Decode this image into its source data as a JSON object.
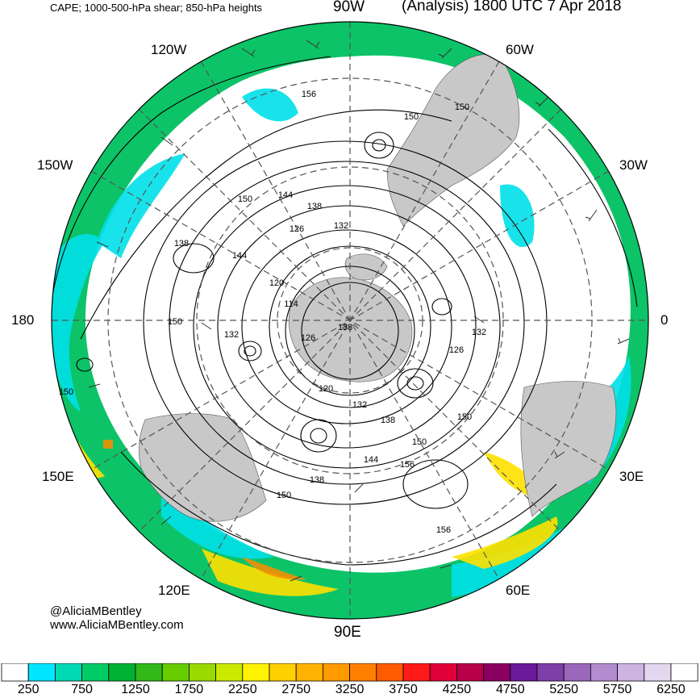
{
  "header": {
    "title_left": "CAPE; 1000-500-hPa shear; 850-hPa heights",
    "title_right": "(Analysis) 1800 UTC 7 Apr 2018"
  },
  "credit": {
    "twitter": "@AliciaMBentley",
    "website": "www.AliciaMBentley.com"
  },
  "longitude_labels": {
    "lon_90w": "90W",
    "lon_120w": "120W",
    "lon_60w": "60W",
    "lon_150w": "150W",
    "lon_30w": "30W",
    "lon_180": "180",
    "lon_0": "0",
    "lon_150e": "150E",
    "lon_30e": "30E",
    "lon_120e": "120E",
    "lon_60e": "60E",
    "lon_90e": "90E"
  },
  "contour_labels": [
    "156",
    "150",
    "150",
    "150",
    "144",
    "138",
    "138",
    "132",
    "126",
    "144",
    "120",
    "114",
    "150",
    "132",
    "138",
    "126",
    "132",
    "120",
    "126",
    "132",
    "138",
    "150",
    "144",
    "156",
    "138",
    "150",
    "156",
    "150",
    "150"
  ],
  "colorbar": {
    "ticks": [
      "250",
      "750",
      "1250",
      "1750",
      "2250",
      "2750",
      "3250",
      "3750",
      "4250",
      "4750",
      "5250",
      "5750",
      "6250"
    ],
    "colors": [
      "#ffffff",
      "#00e5ff",
      "#00d9b3",
      "#00cc66",
      "#00b233",
      "#33b81a",
      "#66cc00",
      "#99d900",
      "#ccea00",
      "#fff200",
      "#ffd000",
      "#ffb300",
      "#ff9900",
      "#ff8000",
      "#ff5a00",
      "#ff1a1a",
      "#e0003a",
      "#b8004a",
      "#8a0060",
      "#6a1a9a",
      "#7e3fa8",
      "#9966bb",
      "#b38cd0",
      "#ccb3e0",
      "#e3d6ef",
      "#ffffff"
    ]
  },
  "colors": {
    "land": "#c8c8c8",
    "cape_low": "#00e0e8",
    "cape_mid": "#00c060",
    "cape_high": "#ffe000",
    "cape_orange": "#ff8c00"
  }
}
